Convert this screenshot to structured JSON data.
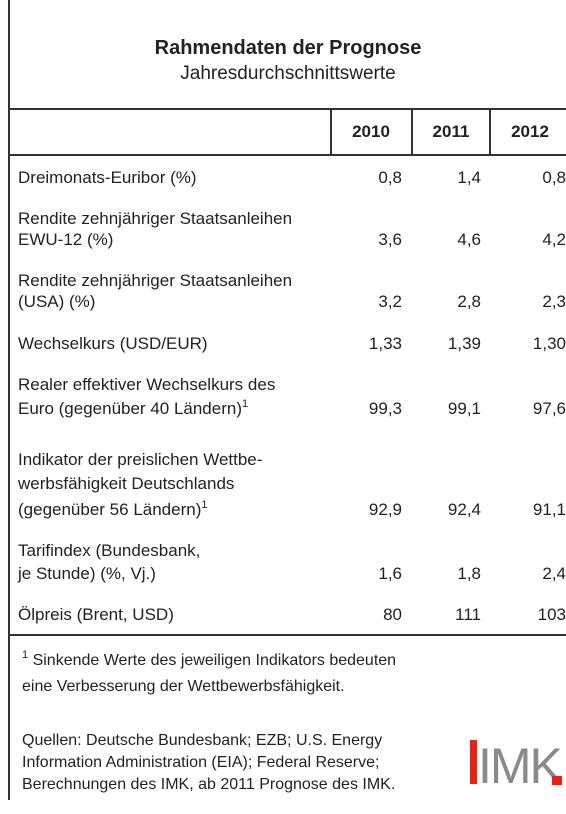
{
  "header": {
    "title": "Rahmendaten der Prognose",
    "subtitle": "Jahresdurchschnittswerte"
  },
  "table": {
    "columns": [
      "2010",
      "2011",
      "2012"
    ],
    "rows": [
      {
        "label": [
          "Dreimonats-Euribor (%)"
        ],
        "values": [
          "0,8",
          "1,4",
          "0,8"
        ]
      },
      {
        "label": [
          "Rendite zehnjähriger Staatsanleihen",
          "EWU-12 (%)"
        ],
        "values": [
          "3,6",
          "4,6",
          "4,2"
        ]
      },
      {
        "label": [
          "Rendite zehnjähriger Staatsanleihen",
          "(USA) (%)"
        ],
        "values": [
          "3,2",
          "2,8",
          "2,3"
        ]
      },
      {
        "label": [
          "Wechselkurs (USD/EUR)"
        ],
        "values": [
          "1,33",
          "1,39",
          "1,30"
        ]
      },
      {
        "label": [
          "Realer effektiver Wechselkurs des",
          "Euro (gegenüber 40 Ländern)"
        ],
        "note": "1",
        "values": [
          "99,3",
          "99,1",
          "97,6"
        ]
      },
      {
        "label": [
          "Indikator der preislichen Wettbe-",
          "werbsfähigkeit Deutschlands",
          "(gegenüber 56 Ländern)"
        ],
        "note": "1",
        "values": [
          "92,9",
          "92,4",
          "91,1"
        ]
      },
      {
        "label": [
          "Tarifindex (Bundesbank,",
          "je Stunde) (%, Vj.)"
        ],
        "values": [
          "1,6",
          "1,8",
          "2,4"
        ]
      },
      {
        "label": [
          "Ölpreis (Brent, USD)"
        ],
        "values": [
          "80",
          "111",
          "103"
        ]
      }
    ]
  },
  "footnote": {
    "mark": "1",
    "lines": [
      "Sinkende Werte des jeweiligen Indikators bedeuten",
      "eine Verbesserung der Wettbewerbsfähigkeit."
    ]
  },
  "sources": [
    "Quellen: Deutsche Bundesbank; EZB; U.S. Energy",
    "Information Administration (EIA); Federal Reserve;",
    "Berechnungen des IMK, ab 2011 Prognose des IMK."
  ],
  "logo": "IMK"
}
